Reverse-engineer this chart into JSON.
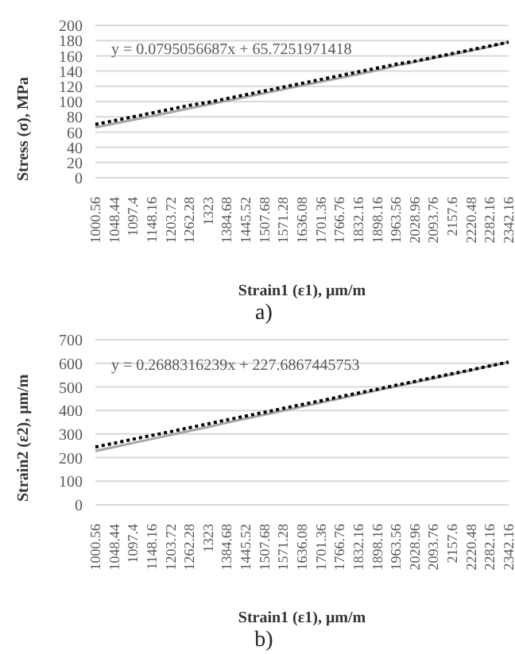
{
  "chart_data": [
    {
      "type": "line",
      "xlabel": "Strain1 (ε1), μm/m",
      "ylabel": "Stress (σ), MPa",
      "categories": [
        "1000.56",
        "1048.44",
        "1097.4",
        "1148.16",
        "1203.72",
        "1262.28",
        "1323",
        "1384.68",
        "1445.52",
        "1507.68",
        "1571.28",
        "1636.08",
        "1701.36",
        "1766.76",
        "1832.16",
        "1898.16",
        "1963.56",
        "2028.96",
        "2093.76",
        "2157.6",
        "2220.48",
        "2282.16",
        "2342.16"
      ],
      "ylim": [
        0,
        200
      ],
      "yticks": [
        0,
        20,
        40,
        60,
        80,
        100,
        120,
        140,
        160,
        180,
        200
      ],
      "grid": "y",
      "series": [
        {
          "type": "line",
          "color": "#a5a5a5",
          "line_style": "solid",
          "values": [
            66,
            71,
            76,
            81,
            86,
            91,
            96,
            101,
            106,
            111,
            116,
            121,
            126,
            131,
            136,
            141,
            147,
            152,
            157,
            162,
            167,
            172,
            178
          ]
        },
        {
          "type": "line",
          "color": "#000000",
          "line_style": "dotted",
          "values": [
            70,
            75,
            80,
            85,
            90,
            95,
            99,
            104,
            109,
            114,
            119,
            124,
            129,
            134,
            139,
            144,
            149,
            153,
            158,
            163,
            168,
            173,
            178
          ]
        }
      ],
      "annotations": [
        "y = 0.0795056687x + 65.7251971418",
        "a)"
      ]
    },
    {
      "type": "line",
      "xlabel": "Strain1 (ε1), μm/m",
      "ylabel": "Strain2 (ε2), μm/m",
      "categories": [
        "1000.56",
        "1048.44",
        "1097.4",
        "1148.16",
        "1203.72",
        "1262.28",
        "1323",
        "1384.68",
        "1445.52",
        "1507.68",
        "1571.28",
        "1636.08",
        "1701.36",
        "1766.76",
        "1832.16",
        "1898.16",
        "1963.56",
        "2028.96",
        "2093.76",
        "2157.6",
        "2220.48",
        "2282.16",
        "2342.16"
      ],
      "ylim": [
        0,
        700
      ],
      "yticks": [
        0,
        100,
        200,
        300,
        400,
        500,
        600,
        700
      ],
      "grid": "y",
      "series": [
        {
          "type": "line",
          "color": "#a5a5a5",
          "line_style": "solid",
          "values": [
            228,
            245,
            262,
            279,
            296,
            313,
            330,
            348,
            365,
            382,
            399,
            416,
            433,
            450,
            468,
            485,
            502,
            519,
            536,
            553,
            570,
            588,
            605
          ]
        },
        {
          "type": "line",
          "color": "#000000",
          "line_style": "dotted",
          "values": [
            245,
            261,
            278,
            294,
            310,
            327,
            343,
            360,
            376,
            392,
            409,
            425,
            441,
            458,
            474,
            490,
            507,
            523,
            540,
            556,
            572,
            589,
            605
          ]
        }
      ],
      "annotations": [
        "y = 0.2688316239x + 227.6867445753",
        "b)"
      ]
    }
  ]
}
